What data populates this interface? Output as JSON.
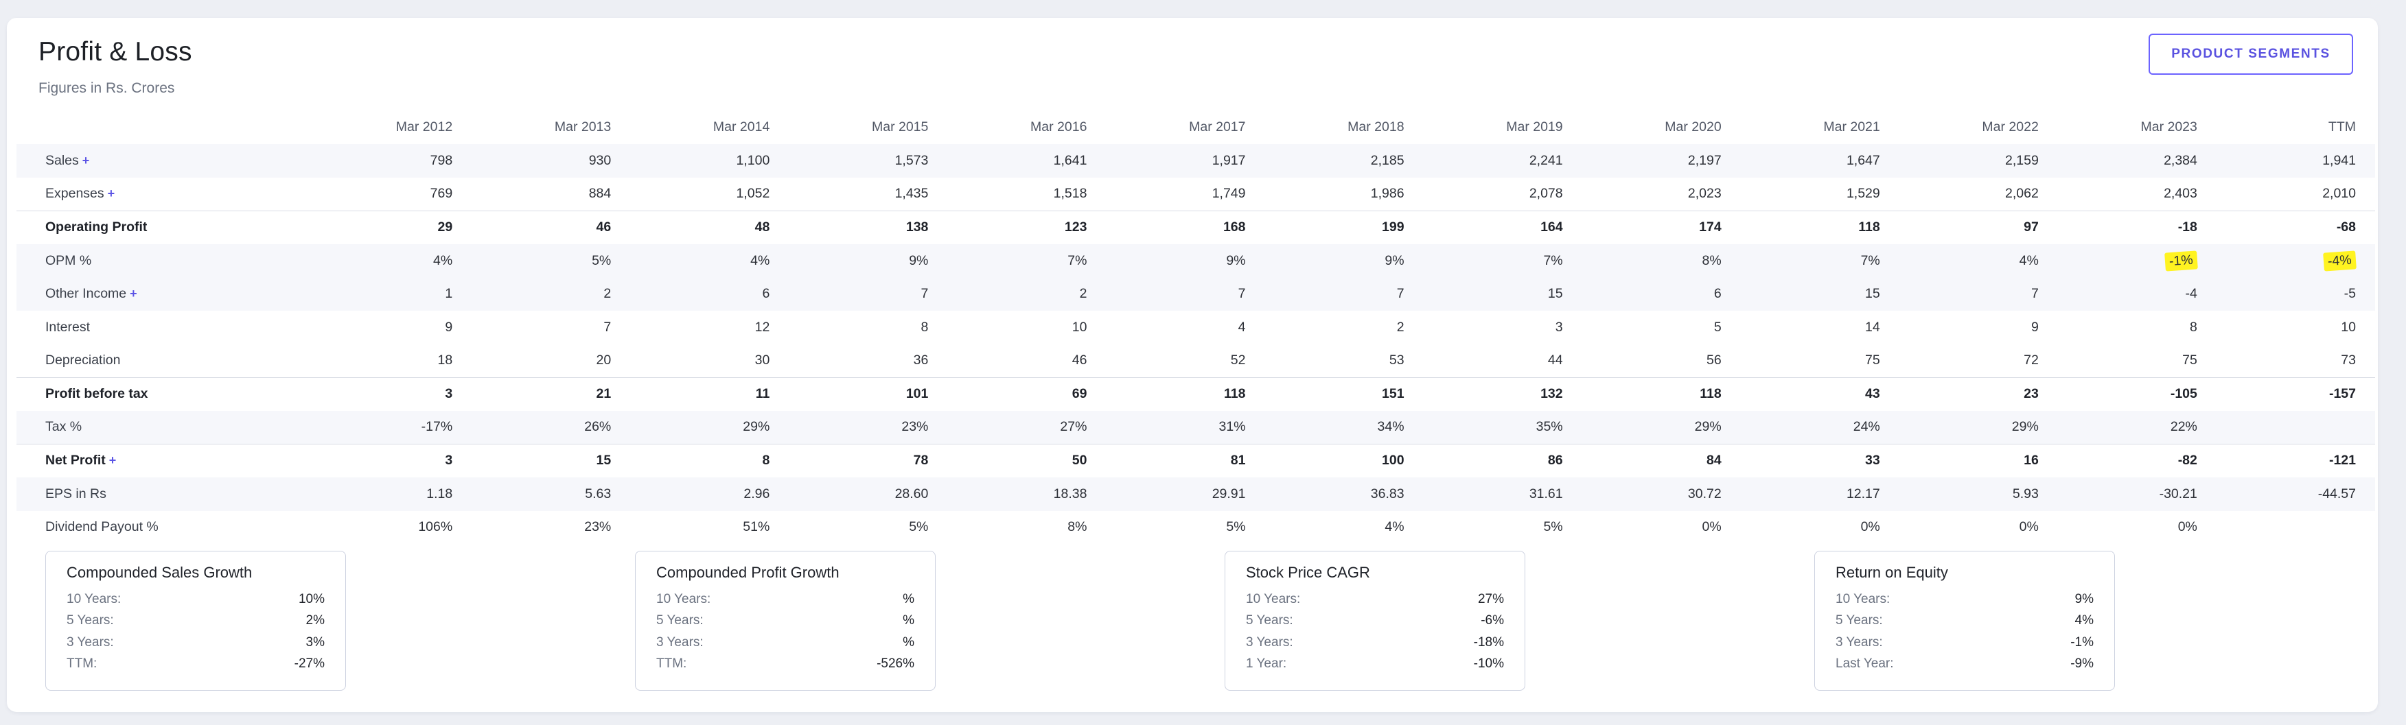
{
  "section": {
    "title": "Profit & Loss",
    "subtitle": "Figures in Rs. Crores",
    "segments_button": "PRODUCT SEGMENTS"
  },
  "table": {
    "columns": [
      "Mar 2012",
      "Mar 2013",
      "Mar 2014",
      "Mar 2015",
      "Mar 2016",
      "Mar 2017",
      "Mar 2018",
      "Mar 2019",
      "Mar 2020",
      "Mar 2021",
      "Mar 2022",
      "Mar 2023",
      "TTM"
    ],
    "rows": [
      {
        "label": "Sales",
        "expandable": true,
        "plus": "+",
        "values": [
          "798",
          "930",
          "1,100",
          "1,573",
          "1,641",
          "1,917",
          "2,185",
          "2,241",
          "2,197",
          "1,647",
          "2,159",
          "2,384",
          "1,941"
        ]
      },
      {
        "label": "Expenses",
        "expandable": true,
        "plus": "+",
        "values": [
          "769",
          "884",
          "1,052",
          "1,435",
          "1,518",
          "1,749",
          "1,986",
          "2,078",
          "2,023",
          "1,529",
          "2,062",
          "2,403",
          "2,010"
        ]
      },
      {
        "label": "Operating Profit",
        "values": [
          "29",
          "46",
          "48",
          "138",
          "123",
          "168",
          "199",
          "164",
          "174",
          "118",
          "97",
          "-18",
          "-68"
        ]
      },
      {
        "label": "OPM %",
        "values": [
          "4%",
          "5%",
          "4%",
          "9%",
          "7%",
          "9%",
          "9%",
          "7%",
          "8%",
          "7%",
          "4%",
          "-1%",
          "-4%"
        ]
      },
      {
        "label": "Other Income",
        "expandable": true,
        "plus": "+",
        "values": [
          "1",
          "2",
          "6",
          "7",
          "2",
          "7",
          "7",
          "15",
          "6",
          "15",
          "7",
          "-4",
          "-5"
        ]
      },
      {
        "label": "Interest",
        "values": [
          "9",
          "7",
          "12",
          "8",
          "10",
          "4",
          "2",
          "3",
          "5",
          "14",
          "9",
          "8",
          "10"
        ]
      },
      {
        "label": "Depreciation",
        "values": [
          "18",
          "20",
          "30",
          "36",
          "46",
          "52",
          "53",
          "44",
          "56",
          "75",
          "72",
          "75",
          "73"
        ]
      },
      {
        "label": "Profit before tax",
        "values": [
          "3",
          "21",
          "11",
          "101",
          "69",
          "118",
          "151",
          "132",
          "118",
          "43",
          "23",
          "-105",
          "-157"
        ]
      },
      {
        "label": "Tax %",
        "values": [
          "-17%",
          "26%",
          "29%",
          "23%",
          "27%",
          "31%",
          "34%",
          "35%",
          "29%",
          "24%",
          "29%",
          "22%",
          ""
        ]
      },
      {
        "label": "Net Profit",
        "expandable": true,
        "plus": "+",
        "values": [
          "3",
          "15",
          "8",
          "78",
          "50",
          "81",
          "100",
          "86",
          "84",
          "33",
          "16",
          "-82",
          "-121"
        ]
      },
      {
        "label": "EPS in Rs",
        "values": [
          "1.18",
          "5.63",
          "2.96",
          "28.60",
          "18.38",
          "29.91",
          "36.83",
          "31.61",
          "30.72",
          "12.17",
          "5.93",
          "-30.21",
          "-44.57"
        ]
      },
      {
        "label": "Dividend Payout %",
        "values": [
          "106%",
          "23%",
          "51%",
          "5%",
          "8%",
          "5%",
          "4%",
          "5%",
          "0%",
          "0%",
          "0%",
          "0%",
          ""
        ]
      }
    ]
  },
  "growth_boxes": [
    {
      "title": "Compounded Sales Growth",
      "rows": [
        [
          "10 Years:",
          "10%"
        ],
        [
          "5 Years:",
          "2%"
        ],
        [
          "3 Years:",
          "3%"
        ],
        [
          "TTM:",
          "-27%"
        ]
      ]
    },
    {
      "title": "Compounded Profit Growth",
      "rows": [
        [
          "10 Years:",
          "%"
        ],
        [
          "5 Years:",
          "%"
        ],
        [
          "3 Years:",
          "%"
        ],
        [
          "TTM:",
          "-526%"
        ]
      ]
    },
    {
      "title": "Stock Price CAGR",
      "rows": [
        [
          "10 Years:",
          "27%"
        ],
        [
          "5 Years:",
          "-6%"
        ],
        [
          "3 Years:",
          "-18%"
        ],
        [
          "1 Year:",
          "-10%"
        ]
      ]
    },
    {
      "title": "Return on Equity",
      "rows": [
        [
          "10 Years:",
          "9%"
        ],
        [
          "5 Years:",
          "4%"
        ],
        [
          "3 Years:",
          "-1%"
        ],
        [
          "Last Year:",
          "-9%"
        ]
      ]
    }
  ],
  "colors": {
    "accent": "#5b54e5",
    "highlight": "#fff321",
    "page_bg": "#edeff4"
  }
}
